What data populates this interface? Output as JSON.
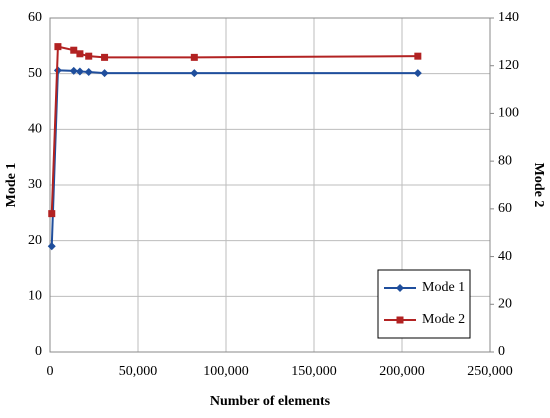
{
  "chart_data": {
    "type": "line",
    "x_label": "Number of elements",
    "y_label": "Mode 1",
    "y2_label": "Mode 2",
    "xlim": [
      0,
      250000
    ],
    "xticks": [
      0,
      {
        "value": 50000,
        "label": "50,000"
      },
      {
        "value": 100000,
        "label": "100,000"
      },
      {
        "value": 150000,
        "label": "150,000"
      },
      {
        "value": 200000,
        "label": "200,000"
      },
      {
        "value": 250000,
        "label": "250,000"
      }
    ],
    "ylim": [
      0,
      60
    ],
    "yticks": [
      0,
      10,
      20,
      30,
      40,
      50,
      60
    ],
    "y2lim": [
      0,
      140
    ],
    "y2ticks": [
      0,
      20,
      40,
      60,
      80,
      100,
      120,
      140
    ],
    "grid": true,
    "legend": "lower right",
    "series": [
      {
        "name": "Mode 1",
        "color": "#1f4e9c",
        "marker": "diamond",
        "x": [
          1000,
          4500,
          13500,
          17000,
          22000,
          31000,
          82000,
          209000
        ],
        "values": [
          19,
          50.6,
          50.5,
          50.4,
          50.3,
          50.1,
          50.1,
          50.1
        ]
      },
      {
        "name": "Mode 2",
        "color": "#b22222",
        "marker": "square",
        "axis": "y2",
        "x": [
          1000,
          4500,
          13500,
          17000,
          22000,
          31000,
          82000,
          209000
        ],
        "values": [
          58,
          128,
          126.5,
          125,
          124,
          123.5,
          123.5,
          124
        ]
      }
    ]
  }
}
